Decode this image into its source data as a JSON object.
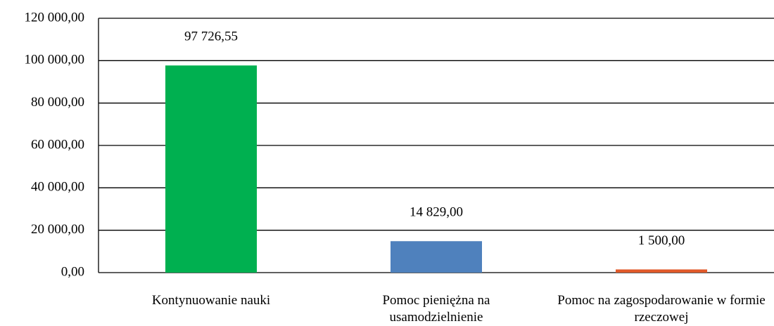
{
  "chart_data": {
    "type": "bar",
    "categories": [
      "Kontynuowanie nauki",
      "Pomoc pieniężna na usamodzielnienie",
      "Pomoc na zagospodarowanie w formie rzeczowej"
    ],
    "values": [
      97726.55,
      14829,
      1500
    ],
    "value_labels": [
      "97 726,55",
      "14 829,00",
      "1 500,00"
    ],
    "colors": [
      "#00b050",
      "#4f81bd",
      "#e0592a"
    ],
    "ylim": [
      0,
      120000
    ],
    "yticks": [
      {
        "value": 0,
        "label": "0,00"
      },
      {
        "value": 20000,
        "label": "20 000,00"
      },
      {
        "value": 40000,
        "label": "40 000,00"
      },
      {
        "value": 60000,
        "label": "60 000,00"
      },
      {
        "value": 80000,
        "label": "80 000,00"
      },
      {
        "value": 100000,
        "label": "100 000,00"
      },
      {
        "value": 120000,
        "label": "120 000,00"
      }
    ],
    "grid": true
  }
}
